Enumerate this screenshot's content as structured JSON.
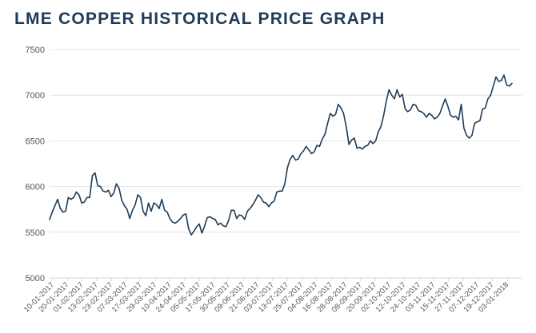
{
  "chart_data": {
    "type": "line",
    "title": "LME COPPER HISTORICAL PRICE GRAPH",
    "xlabel": "",
    "ylabel": "",
    "ylim": [
      5000,
      7500
    ],
    "yticks": [
      "5000",
      "5500",
      "6000",
      "6500",
      "7000",
      "7500"
    ],
    "xtick_labels": [
      "10-01-2017",
      "20-01-2017",
      "01-02-2017",
      "13-02-2017",
      "23-02-2017",
      "07-03-2017",
      "17-03-2017",
      "29-03-2017",
      "10-04-2017",
      "24-04-2017",
      "05-05-2017",
      "17-05-2017",
      "30-05-2017",
      "09-06-2017",
      "21-06-2017",
      "03-07-2017",
      "13-07-2017",
      "25-07-2017",
      "04-08-2017",
      "16-08-2017",
      "28-08-2017",
      "08-09-2017",
      "20-09-2017",
      "02-10-2017",
      "12-10-2017",
      "24-10-2017",
      "03-11-2017",
      "15-11-2017",
      "27-11-2017",
      "07-12-2017",
      "19-12-2017",
      "03-01-2018"
    ],
    "grid": true,
    "legend": "none",
    "series_color": "#1f3b57",
    "values": [
      5640,
      5720,
      5790,
      5860,
      5760,
      5720,
      5730,
      5880,
      5860,
      5880,
      5940,
      5910,
      5820,
      5830,
      5880,
      5880,
      6120,
      6150,
      6010,
      6000,
      5950,
      5940,
      5960,
      5890,
      5930,
      6030,
      5980,
      5850,
      5790,
      5750,
      5650,
      5740,
      5800,
      5910,
      5880,
      5730,
      5680,
      5820,
      5730,
      5820,
      5800,
      5760,
      5860,
      5740,
      5720,
      5650,
      5610,
      5600,
      5620,
      5650,
      5690,
      5700,
      5540,
      5470,
      5510,
      5560,
      5590,
      5490,
      5570,
      5660,
      5670,
      5650,
      5640,
      5580,
      5600,
      5570,
      5560,
      5630,
      5740,
      5740,
      5650,
      5690,
      5680,
      5640,
      5730,
      5760,
      5800,
      5850,
      5910,
      5880,
      5830,
      5820,
      5780,
      5820,
      5840,
      5940,
      5950,
      5950,
      6030,
      6210,
      6300,
      6340,
      6290,
      6300,
      6360,
      6390,
      6440,
      6400,
      6360,
      6380,
      6450,
      6440,
      6520,
      6570,
      6690,
      6800,
      6770,
      6790,
      6900,
      6860,
      6800,
      6650,
      6460,
      6510,
      6530,
      6420,
      6430,
      6410,
      6440,
      6450,
      6500,
      6470,
      6500,
      6600,
      6660,
      6780,
      6940,
      7060,
      7000,
      6960,
      7060,
      6980,
      7010,
      6850,
      6820,
      6840,
      6900,
      6890,
      6830,
      6820,
      6800,
      6760,
      6800,
      6780,
      6740,
      6760,
      6800,
      6880,
      6960,
      6880,
      6780,
      6760,
      6770,
      6730,
      6900,
      6640,
      6560,
      6530,
      6560,
      6690,
      6710,
      6720,
      6850,
      6860,
      6960,
      7000,
      7100,
      7200,
      7150,
      7160,
      7220,
      7110,
      7100,
      7130
    ]
  }
}
